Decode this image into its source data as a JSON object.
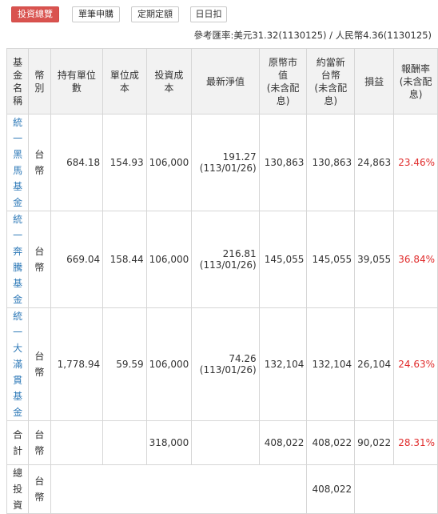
{
  "tabs": [
    {
      "label": "投資總覽",
      "active": true
    },
    {
      "label": "單筆申購",
      "active": false
    },
    {
      "label": "定期定額",
      "active": false
    },
    {
      "label": "日日扣",
      "active": false
    }
  ],
  "rate_note": "參考匯率:美元31.32(1130125) / 人民幣4.36(1130125)",
  "columns": [
    "基金名稱",
    "幣別",
    "持有單位數",
    "單位成本",
    "投資成本",
    "最新淨值",
    "原幣市值(未含配息)",
    "約當新台幣(未含配息)",
    "損益",
    "報酬率(未含配息)"
  ],
  "header_lines": [
    [
      "基",
      "金",
      "名",
      "稱"
    ],
    [
      "幣",
      "別"
    ],
    [
      "持有單位",
      "數"
    ],
    [
      "單位成",
      "本"
    ],
    [
      "投資成",
      "本"
    ],
    [
      "最新淨值"
    ],
    [
      "原幣市",
      "值",
      "(未含配",
      "息)"
    ],
    [
      "約當新",
      "台幣",
      "(未含配",
      "息)"
    ],
    [
      "損益"
    ],
    [
      "報酬率",
      "(未含配",
      "息)"
    ]
  ],
  "funds": [
    {
      "name": "統一黑馬基金",
      "name_chars": [
        "統",
        "一",
        "黑",
        "馬",
        "基",
        "金"
      ],
      "currency_chars": [
        "台",
        "幣"
      ],
      "units": "684.18",
      "unit_cost": "154.93",
      "cost": "106,000",
      "nav": "191.27",
      "nav_date": "(113/01/26)",
      "market_value": "130,863",
      "twd_value": "130,863",
      "pnl": "24,863",
      "return": "23.46%"
    },
    {
      "name": "統一奔騰基金",
      "name_chars": [
        "統",
        "一",
        "奔",
        "騰",
        "基",
        "金"
      ],
      "currency_chars": [
        "台",
        "幣"
      ],
      "units": "669.04",
      "unit_cost": "158.44",
      "cost": "106,000",
      "nav": "216.81",
      "nav_date": "(113/01/26)",
      "market_value": "145,055",
      "twd_value": "145,055",
      "pnl": "39,055",
      "return": "36.84%"
    },
    {
      "name": "統一大滿貫基金",
      "name_chars": [
        "統",
        "一",
        "大",
        "滿",
        "貫",
        "基",
        "金"
      ],
      "currency_chars": [
        "台",
        "幣"
      ],
      "units": "1,778.94",
      "unit_cost": "59.59",
      "cost": "106,000",
      "nav": "74.26",
      "nav_date": "(113/01/26)",
      "market_value": "132,104",
      "twd_value": "132,104",
      "pnl": "26,104",
      "return": "24.63%"
    }
  ],
  "subtotal": {
    "label_chars": [
      "合",
      "計"
    ],
    "currency_chars": [
      "台",
      "幣"
    ],
    "cost": "318,000",
    "market_value": "408,022",
    "twd_value": "408,022",
    "pnl": "90,022",
    "return": "28.31%"
  },
  "total": {
    "label_chars": [
      "總",
      "投",
      "資"
    ],
    "currency_chars": [
      "台",
      "幣"
    ],
    "twd_value": "408,022"
  },
  "colors": {
    "tab_active": "#d9534f",
    "positive": "#e02c2c",
    "fund_link": "#2f7ab8",
    "header_bg": "#f2f2f2",
    "border": "#d6d6d6"
  }
}
